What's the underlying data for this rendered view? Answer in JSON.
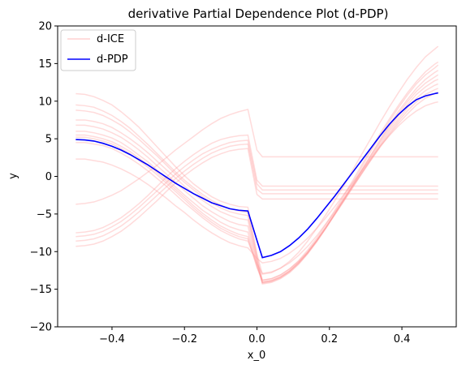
{
  "chart_data": {
    "type": "line",
    "title": "derivative Partial Dependence Plot (d-PDP)",
    "xlabel": "x_0",
    "ylabel": "y",
    "xlim": [
      -0.55,
      0.55
    ],
    "ylim": [
      -20,
      20
    ],
    "xticks": [
      -0.4,
      -0.2,
      0.0,
      0.2,
      0.4
    ],
    "xtick_labels": [
      "−0.4",
      "−0.2",
      "0.0",
      "0.2",
      "0.4"
    ],
    "yticks": [
      -20,
      -15,
      -10,
      -5,
      0,
      5,
      10,
      15,
      20
    ],
    "ytick_labels": [
      "−20",
      "−15",
      "−10",
      "−5",
      "0",
      "5",
      "10",
      "15",
      "20"
    ],
    "grid": false,
    "legend": {
      "placement": "top-left",
      "entries": [
        {
          "label": "d-ICE",
          "color": "#ff9999"
        },
        {
          "label": "d-PDP",
          "color": "#0000ff"
        }
      ]
    },
    "series": [
      {
        "name": "d-PDP",
        "color": "#0000ff",
        "x": [
          -0.5,
          -0.475,
          -0.45,
          -0.425,
          -0.4,
          -0.375,
          -0.35,
          -0.325,
          -0.3,
          -0.275,
          -0.25,
          -0.225,
          -0.2,
          -0.175,
          -0.15,
          -0.125,
          -0.1,
          -0.075,
          -0.05,
          -0.025,
          0.0,
          0.015,
          0.04,
          0.065,
          0.09,
          0.115,
          0.14,
          0.165,
          0.19,
          0.215,
          0.24,
          0.265,
          0.29,
          0.315,
          0.34,
          0.365,
          0.39,
          0.415,
          0.44,
          0.465,
          0.49,
          0.5
        ],
        "y": [
          4.9,
          4.85,
          4.7,
          4.4,
          4.0,
          3.5,
          2.9,
          2.2,
          1.5,
          0.7,
          -0.1,
          -0.9,
          -1.6,
          -2.3,
          -2.9,
          -3.5,
          -3.9,
          -4.3,
          -4.5,
          -4.6,
          -8.5,
          -10.8,
          -10.5,
          -10.0,
          -9.2,
          -8.2,
          -7.0,
          -5.6,
          -4.1,
          -2.6,
          -1.0,
          0.6,
          2.2,
          3.8,
          5.4,
          6.9,
          8.2,
          9.3,
          10.2,
          10.7,
          11.0,
          11.1
        ]
      }
    ],
    "ice_series": {
      "name": "d-ICE",
      "color": "#ff9999",
      "x": [
        -0.5,
        -0.475,
        -0.45,
        -0.425,
        -0.4,
        -0.375,
        -0.35,
        -0.325,
        -0.3,
        -0.275,
        -0.25,
        -0.225,
        -0.2,
        -0.175,
        -0.15,
        -0.125,
        -0.1,
        -0.075,
        -0.05,
        -0.025,
        0.0,
        0.015,
        0.04,
        0.065,
        0.09,
        0.115,
        0.14,
        0.165,
        0.19,
        0.215,
        0.24,
        0.265,
        0.29,
        0.315,
        0.34,
        0.365,
        0.39,
        0.415,
        0.44,
        0.465,
        0.49,
        0.5
      ],
      "curves": [
        [
          11.0,
          10.9,
          10.6,
          10.1,
          9.5,
          8.6,
          7.6,
          6.5,
          5.2,
          3.9,
          2.6,
          1.3,
          0.1,
          -1.0,
          -1.9,
          -2.7,
          -3.3,
          -3.7,
          -4.0,
          -4.1,
          -10.3,
          -13.0,
          -12.8,
          -12.2,
          -11.3,
          -10.1,
          -8.6,
          -6.9,
          -5.1,
          -3.2,
          -1.2,
          0.9,
          3.0,
          5.1,
          7.2,
          9.2,
          11.1,
          12.9,
          14.5,
          15.9,
          16.9,
          17.3
        ],
        [
          9.5,
          9.4,
          9.2,
          8.7,
          8.1,
          7.3,
          6.4,
          5.3,
          4.2,
          3.0,
          1.8,
          0.6,
          -0.5,
          -1.5,
          -2.4,
          -3.2,
          -3.8,
          -4.3,
          -4.6,
          -4.8,
          -10.6,
          -13.8,
          -13.6,
          -13.1,
          -12.3,
          -11.2,
          -9.8,
          -8.2,
          -6.4,
          -4.5,
          -2.5,
          -0.5,
          1.6,
          3.7,
          5.7,
          7.6,
          9.4,
          11.1,
          12.6,
          13.9,
          14.9,
          15.2
        ],
        [
          8.8,
          8.7,
          8.5,
          8.1,
          7.5,
          6.8,
          5.9,
          4.9,
          3.8,
          2.7,
          1.5,
          0.3,
          -0.8,
          -1.8,
          -2.7,
          -3.5,
          -4.2,
          -4.7,
          -5.0,
          -5.2,
          -10.9,
          -14.1,
          -13.9,
          -13.4,
          -12.6,
          -11.5,
          -10.1,
          -8.5,
          -6.7,
          -4.8,
          -2.8,
          -0.8,
          1.3,
          3.4,
          5.4,
          7.3,
          9.1,
          10.8,
          12.3,
          13.5,
          14.4,
          14.8
        ],
        [
          7.5,
          7.5,
          7.3,
          7.0,
          6.5,
          5.8,
          5.0,
          4.1,
          3.1,
          2.0,
          0.9,
          -0.2,
          -1.3,
          -2.3,
          -3.2,
          -4.0,
          -4.7,
          -5.2,
          -5.6,
          -5.8,
          -11.2,
          -14.3,
          -14.1,
          -13.6,
          -12.8,
          -11.7,
          -10.3,
          -8.7,
          -6.9,
          -5.0,
          -3.1,
          -1.1,
          0.9,
          2.9,
          4.9,
          6.8,
          8.6,
          10.2,
          11.7,
          12.9,
          13.8,
          14.1
        ],
        [
          6.8,
          6.8,
          6.6,
          6.3,
          5.8,
          5.2,
          4.4,
          3.5,
          2.5,
          1.4,
          0.3,
          -0.8,
          -1.9,
          -2.9,
          -3.9,
          -4.7,
          -5.4,
          -6.0,
          -6.4,
          -6.6,
          -11.5,
          -14.2,
          -14.0,
          -13.5,
          -12.7,
          -11.6,
          -10.2,
          -8.6,
          -6.9,
          -5.0,
          -3.1,
          -1.1,
          0.9,
          2.8,
          4.7,
          6.6,
          8.3,
          9.9,
          11.3,
          12.4,
          13.2,
          13.5
        ],
        [
          6.0,
          6.0,
          5.8,
          5.5,
          5.1,
          4.5,
          3.7,
          2.8,
          1.9,
          0.8,
          -0.3,
          -1.4,
          -2.5,
          -3.5,
          -4.5,
          -5.3,
          -6.1,
          -6.7,
          -7.1,
          -7.4,
          -11.8,
          -14.0,
          -13.8,
          -13.3,
          -12.5,
          -11.4,
          -10.1,
          -8.5,
          -6.8,
          -5.0,
          -3.1,
          -1.2,
          0.7,
          2.6,
          4.5,
          6.3,
          8.0,
          9.5,
          10.9,
          11.9,
          12.7,
          12.9
        ],
        [
          5.5,
          5.5,
          5.3,
          5.0,
          4.6,
          4.0,
          3.3,
          2.4,
          1.5,
          0.5,
          -0.6,
          -1.7,
          -2.8,
          -3.9,
          -4.9,
          -5.8,
          -6.6,
          -7.2,
          -7.7,
          -8.0,
          -12.0,
          -14.1,
          -13.9,
          -13.4,
          -12.6,
          -11.5,
          -10.2,
          -8.6,
          -6.9,
          -5.1,
          -3.3,
          -1.4,
          0.5,
          2.4,
          4.2,
          6.0,
          7.6,
          9.1,
          10.4,
          11.4,
          12.1,
          12.3
        ],
        [
          5.2,
          5.2,
          5.0,
          4.7,
          4.3,
          3.7,
          3.0,
          2.1,
          1.2,
          0.2,
          -0.9,
          -2.0,
          -3.1,
          -4.2,
          -5.2,
          -6.1,
          -6.9,
          -7.5,
          -8.0,
          -8.3,
          -12.1,
          -13.8,
          -13.6,
          -13.1,
          -12.3,
          -11.3,
          -10.0,
          -8.5,
          -6.8,
          -5.0,
          -3.2,
          -1.4,
          0.4,
          2.2,
          4.0,
          5.7,
          7.3,
          8.7,
          9.9,
          10.9,
          11.5,
          11.7
        ],
        [
          4.5,
          4.5,
          4.3,
          4.1,
          3.7,
          3.1,
          2.4,
          1.6,
          0.7,
          -0.3,
          -1.3,
          -2.4,
          -3.5,
          -4.5,
          -5.5,
          -6.4,
          -7.2,
          -7.8,
          -8.3,
          -8.6,
          -11.6,
          -12.9,
          -12.7,
          -12.2,
          -11.5,
          -10.5,
          -9.3,
          -7.9,
          -6.3,
          -4.7,
          -3.0,
          -1.2,
          0.5,
          2.2,
          3.9,
          5.5,
          7.0,
          8.3,
          9.5,
          10.4,
          11.0,
          11.2
        ],
        [
          2.3,
          2.3,
          2.1,
          1.9,
          1.5,
          1.0,
          0.4,
          -0.3,
          -1.1,
          -2.0,
          -2.9,
          -3.9,
          -4.8,
          -5.8,
          -6.7,
          -7.5,
          -8.2,
          -8.8,
          -9.2,
          -9.5,
          -10.9,
          -11.5,
          -11.3,
          -10.9,
          -10.2,
          -9.3,
          -8.2,
          -6.9,
          -5.5,
          -4.0,
          -2.4,
          -0.8,
          0.8,
          2.4,
          4.0,
          5.4,
          6.7,
          7.8,
          8.7,
          9.4,
          9.8,
          9.9
        ],
        [
          -3.7,
          -3.6,
          -3.4,
          -3.0,
          -2.5,
          -1.9,
          -1.1,
          -0.3,
          0.6,
          1.5,
          2.5,
          3.5,
          4.4,
          5.3,
          6.2,
          7.0,
          7.7,
          8.2,
          8.6,
          8.9,
          3.5,
          2.6,
          2.6,
          2.6,
          2.6,
          2.6,
          2.6,
          2.6,
          2.6,
          2.6,
          2.6,
          2.6,
          2.6,
          2.6,
          2.6,
          2.6,
          2.6,
          2.6,
          2.6,
          2.6,
          2.6,
          2.6
        ],
        [
          -7.5,
          -7.4,
          -7.2,
          -6.8,
          -6.2,
          -5.5,
          -4.6,
          -3.6,
          -2.5,
          -1.3,
          -0.1,
          1.0,
          2.0,
          2.9,
          3.7,
          4.4,
          4.9,
          5.2,
          5.4,
          5.5,
          -0.5,
          -1.3,
          -1.3,
          -1.3,
          -1.3,
          -1.3,
          -1.3,
          -1.3,
          -1.3,
          -1.3,
          -1.3,
          -1.3,
          -1.3,
          -1.3,
          -1.3,
          -1.3,
          -1.3,
          -1.3,
          -1.3,
          -1.3,
          -1.3,
          -1.3
        ],
        [
          -8.0,
          -7.9,
          -7.7,
          -7.3,
          -6.7,
          -6.0,
          -5.1,
          -4.1,
          -3.0,
          -1.9,
          -0.8,
          0.3,
          1.3,
          2.2,
          3.0,
          3.6,
          4.1,
          4.5,
          4.7,
          4.8,
          -1.0,
          -1.8,
          -1.8,
          -1.8,
          -1.8,
          -1.8,
          -1.8,
          -1.8,
          -1.8,
          -1.8,
          -1.8,
          -1.8,
          -1.8,
          -1.8,
          -1.8,
          -1.8,
          -1.8,
          -1.8,
          -1.8,
          -1.8,
          -1.8,
          -1.8
        ],
        [
          -8.6,
          -8.5,
          -8.3,
          -7.9,
          -7.3,
          -6.6,
          -5.7,
          -4.7,
          -3.6,
          -2.5,
          -1.4,
          -0.3,
          0.7,
          1.6,
          2.4,
          3.1,
          3.6,
          4.0,
          4.2,
          4.3,
          -1.7,
          -2.3,
          -2.3,
          -2.3,
          -2.3,
          -2.3,
          -2.3,
          -2.3,
          -2.3,
          -2.3,
          -2.3,
          -2.3,
          -2.3,
          -2.3,
          -2.3,
          -2.3,
          -2.3,
          -2.3,
          -2.3,
          -2.3,
          -2.3,
          -2.3
        ],
        [
          -9.3,
          -9.2,
          -9.0,
          -8.6,
          -8.0,
          -7.3,
          -6.4,
          -5.4,
          -4.3,
          -3.2,
          -2.0,
          -0.9,
          0.1,
          1.0,
          1.8,
          2.5,
          3.0,
          3.4,
          3.6,
          3.7,
          -2.4,
          -3.0,
          -3.0,
          -3.0,
          -3.0,
          -3.0,
          -3.0,
          -3.0,
          -3.0,
          -3.0,
          -3.0,
          -3.0,
          -3.0,
          -3.0,
          -3.0,
          -3.0,
          -3.0,
          -3.0,
          -3.0,
          -3.0,
          -3.0,
          -3.0
        ]
      ]
    }
  }
}
